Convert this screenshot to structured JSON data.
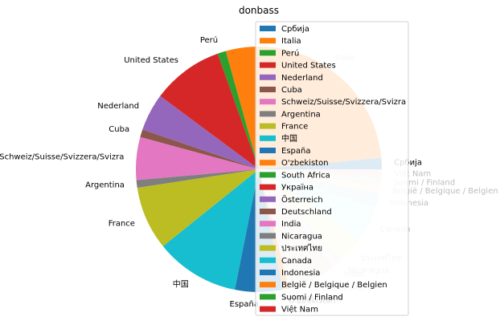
{
  "chart_data": {
    "type": "pie",
    "title": "donbass",
    "legend_placement": "top-right",
    "slices": [
      {
        "label": "Србија",
        "value": 1.5,
        "color": "#1f77b4",
        "faded": false
      },
      {
        "label": "Italia",
        "value": 27.6,
        "color": "#ff7f0e",
        "faded": false
      },
      {
        "label": "Perú",
        "value": 1.1,
        "color": "#2ca02c",
        "faded": false
      },
      {
        "label": "United States",
        "value": 9.3,
        "color": "#d62728",
        "faded": false
      },
      {
        "label": "Nederland",
        "value": 4.9,
        "color": "#9467bd",
        "faded": false
      },
      {
        "label": "Cuba",
        "value": 1.0,
        "color": "#8c564b",
        "faded": false
      },
      {
        "label": "Schweiz/Suisse/Svizzera/Svizra",
        "value": 5.6,
        "color": "#e377c2",
        "faded": false
      },
      {
        "label": "Argentina",
        "value": 1.0,
        "color": "#7f7f7f",
        "faded": false
      },
      {
        "label": "France",
        "value": 8.3,
        "color": "#bcbd22",
        "faded": false
      },
      {
        "label": "中国",
        "value": 11.0,
        "color": "#17becf",
        "faded": false
      },
      {
        "label": "España",
        "value": 6.2,
        "color": "#1f77b4",
        "faded": false
      },
      {
        "label": "O'zbekiston",
        "value": 0.8,
        "color": "#ff7f0e",
        "faded": false
      },
      {
        "label": "South Africa",
        "value": 0.4,
        "color": "#2ca02c",
        "faded": true
      },
      {
        "label": "Україна",
        "value": 0.4,
        "color": "#d62728",
        "faded": true
      },
      {
        "label": "Österreich",
        "value": 0.4,
        "color": "#9467bd",
        "faded": true
      },
      {
        "label": "Deutschland",
        "value": 5.2,
        "color": "#8c564b",
        "faded": true
      },
      {
        "label": "India",
        "value": 0.8,
        "color": "#e377c2",
        "faded": true
      },
      {
        "label": "Nicaragua",
        "value": 0.5,
        "color": "#7f7f7f",
        "faded": true
      },
      {
        "label": "ประเทศไทย",
        "value": 3.6,
        "color": "#bcbd22",
        "faded": true
      },
      {
        "label": "Canada",
        "value": 4.6,
        "color": "#17becf",
        "faded": true
      },
      {
        "label": "Indonesia",
        "value": 1.9,
        "color": "#1f77b4",
        "faded": true
      },
      {
        "label": "België / Belgique / Belgien",
        "value": 1.0,
        "color": "#ff7f0e",
        "faded": true
      },
      {
        "label": "Suomi / Finland",
        "value": 1.0,
        "color": "#2ca02c",
        "faded": true
      },
      {
        "label": "Việt Nam",
        "value": 1.1,
        "color": "#d62728",
        "faded": true
      }
    ]
  }
}
